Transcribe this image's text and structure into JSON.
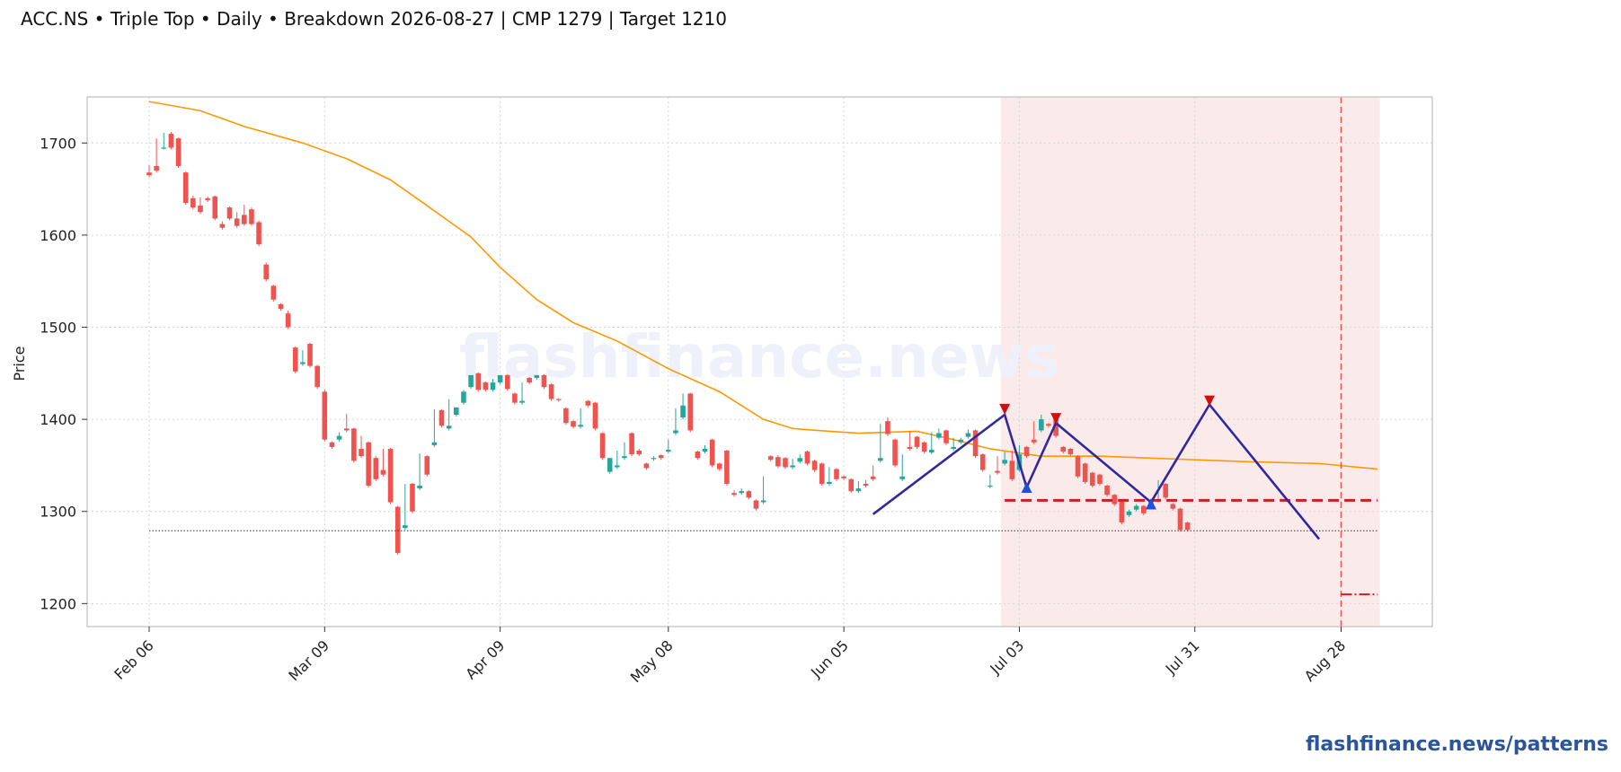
{
  "title": {
    "ticker": "ACC.NS",
    "pattern": "Triple Top",
    "timeframe": "Daily",
    "breakdown": "Breakdown 2026-08-27",
    "cmp": "CMP 1279",
    "target": "Target 1210"
  },
  "watermark": "flashfinance.news",
  "footer": "flashfinance.news/patterns",
  "colors": {
    "up": "#26a69a",
    "down": "#ef5350",
    "sma": "#ff9800",
    "pattern_line": "#31289f",
    "peak_marker": "#cc1111",
    "trough_marker": "#1f4fdd",
    "neckline": "#cc1f1f",
    "zone": "#f9e5e5",
    "grid": "#d6d6d6",
    "footer": "#2c5599"
  },
  "chart_data": {
    "type": "candlestick",
    "ylabel": "Price",
    "ylim": [
      1175,
      1750
    ],
    "yticks": [
      1200,
      1300,
      1400,
      1500,
      1600,
      1700
    ],
    "xticks": [
      "Feb 06",
      "Mar 09",
      "Apr 09",
      "May 08",
      "Jun 05",
      "Jul 03",
      "Jul 31",
      "Aug 28"
    ],
    "grid": true,
    "candles_ohc": [
      [
        1668,
        1676,
        1665
      ],
      [
        1675,
        1705,
        1670
      ],
      [
        1695,
        1711,
        1695
      ],
      [
        1710,
        1712,
        1695
      ],
      [
        1705,
        1706,
        1675
      ],
      [
        1668,
        1669,
        1635
      ],
      [
        1640,
        1643,
        1630
      ],
      [
        1632,
        1641,
        1625
      ],
      [
        1640,
        1642,
        1638
      ],
      [
        1642,
        1643,
        1618
      ],
      [
        1612,
        1615,
        1608
      ],
      [
        1630,
        1631,
        1618
      ],
      [
        1618,
        1625,
        1610
      ],
      [
        1622,
        1633,
        1612
      ],
      [
        1628,
        1630,
        1612
      ],
      [
        1614,
        1616,
        1590
      ],
      [
        1568,
        1570,
        1552
      ],
      [
        1545,
        1546,
        1530
      ],
      [
        1525,
        1526,
        1520
      ],
      [
        1515,
        1518,
        1500
      ],
      [
        1478,
        1479,
        1452
      ],
      [
        1460,
        1475,
        1462
      ],
      [
        1482,
        1483,
        1458
      ],
      [
        1458,
        1459,
        1435
      ],
      [
        1430,
        1432,
        1378
      ],
      [
        1375,
        1376,
        1370
      ],
      [
        1378,
        1386,
        1382
      ],
      [
        1390,
        1406,
        1388
      ],
      [
        1390,
        1391,
        1355
      ],
      [
        1368,
        1382,
        1360
      ],
      [
        1375,
        1376,
        1328
      ],
      [
        1358,
        1360,
        1335
      ],
      [
        1345,
        1368,
        1340
      ],
      [
        1368,
        1369,
        1310
      ],
      [
        1305,
        1306,
        1255
      ],
      [
        1282,
        1330,
        1285
      ],
      [
        1330,
        1331,
        1300
      ],
      [
        1325,
        1363,
        1328
      ],
      [
        1360,
        1361,
        1340
      ],
      [
        1372,
        1411,
        1375
      ],
      [
        1410,
        1411,
        1393
      ],
      [
        1390,
        1422,
        1393
      ],
      [
        1405,
        1412,
        1413
      ],
      [
        1418,
        1432,
        1430
      ],
      [
        1435,
        1441,
        1448
      ],
      [
        1450,
        1451,
        1432
      ],
      [
        1440,
        1441,
        1432
      ],
      [
        1432,
        1444,
        1440
      ],
      [
        1440,
        1448,
        1448
      ],
      [
        1448,
        1449,
        1433
      ],
      [
        1428,
        1429,
        1418
      ],
      [
        1418,
        1440,
        1420
      ],
      [
        1445,
        1446,
        1440
      ],
      [
        1445,
        1447,
        1448
      ],
      [
        1448,
        1449,
        1435
      ],
      [
        1438,
        1439,
        1422
      ],
      [
        1422,
        1423,
        1421
      ],
      [
        1412,
        1413,
        1396
      ],
      [
        1398,
        1399,
        1392
      ],
      [
        1392,
        1412,
        1394
      ],
      [
        1420,
        1421,
        1415
      ],
      [
        1418,
        1419,
        1390
      ],
      [
        1385,
        1386,
        1358
      ],
      [
        1343,
        1345,
        1358
      ],
      [
        1348,
        1366,
        1350
      ],
      [
        1358,
        1375,
        1360
      ],
      [
        1385,
        1386,
        1362
      ],
      [
        1366,
        1368,
        1362
      ],
      [
        1352,
        1353,
        1347
      ],
      [
        1357,
        1360,
        1358
      ],
      [
        1361,
        1362,
        1358
      ],
      [
        1365,
        1378,
        1367
      ],
      [
        1385,
        1412,
        1388
      ],
      [
        1402,
        1428,
        1415
      ],
      [
        1428,
        1429,
        1388
      ],
      [
        1365,
        1366,
        1358
      ],
      [
        1365,
        1372,
        1368
      ],
      [
        1378,
        1379,
        1350
      ],
      [
        1352,
        1353,
        1346
      ],
      [
        1366,
        1367,
        1330
      ],
      [
        1320,
        1323,
        1318
      ],
      [
        1320,
        1325,
        1322
      ],
      [
        1322,
        1323,
        1315
      ],
      [
        1312,
        1313,
        1303
      ],
      [
        1310,
        1338,
        1312
      ],
      [
        1360,
        1361,
        1356
      ],
      [
        1359,
        1361,
        1349
      ],
      [
        1358,
        1359,
        1348
      ],
      [
        1348,
        1357,
        1350
      ],
      [
        1354,
        1362,
        1358
      ],
      [
        1365,
        1366,
        1352
      ],
      [
        1355,
        1356,
        1345
      ],
      [
        1352,
        1353,
        1330
      ],
      [
        1330,
        1348,
        1332
      ],
      [
        1346,
        1347,
        1335
      ],
      [
        1338,
        1339,
        1336
      ],
      [
        1335,
        1336,
        1322
      ],
      [
        1322,
        1333,
        1325
      ],
      [
        1330,
        1334,
        1328
      ],
      [
        1338,
        1350,
        1335
      ],
      [
        1355,
        1395,
        1358
      ],
      [
        1398,
        1402,
        1384
      ],
      [
        1378,
        1379,
        1350
      ],
      [
        1335,
        1362,
        1338
      ],
      [
        1370,
        1387,
        1368
      ],
      [
        1381,
        1382,
        1370
      ],
      [
        1375,
        1376,
        1365
      ],
      [
        1364,
        1386,
        1367
      ],
      [
        1380,
        1390,
        1385
      ],
      [
        1388,
        1389,
        1374
      ],
      [
        1368,
        1380,
        1370
      ],
      [
        1375,
        1380,
        1378
      ],
      [
        1381,
        1389,
        1385
      ],
      [
        1388,
        1389,
        1360
      ],
      [
        1362,
        1363,
        1345
      ],
      [
        1327,
        1340,
        1328
      ],
      [
        1344,
        1360,
        1342
      ],
      [
        1352,
        1365,
        1356
      ],
      [
        1355,
        1366,
        1335
      ],
      [
        1345,
        1372,
        1362
      ],
      [
        1370,
        1371,
        1360
      ],
      [
        1378,
        1398,
        1375
      ],
      [
        1388,
        1405,
        1400
      ],
      [
        1395,
        1396,
        1393
      ],
      [
        1402,
        1403,
        1382
      ],
      [
        1370,
        1371,
        1365
      ],
      [
        1368,
        1369,
        1362
      ],
      [
        1360,
        1361,
        1338
      ],
      [
        1352,
        1353,
        1332
      ],
      [
        1342,
        1343,
        1328
      ],
      [
        1340,
        1341,
        1330
      ],
      [
        1328,
        1329,
        1318
      ],
      [
        1318,
        1319,
        1308
      ],
      [
        1312,
        1313,
        1288
      ],
      [
        1296,
        1302,
        1300
      ],
      [
        1302,
        1308,
        1306
      ],
      [
        1306,
        1307,
        1298
      ],
      [
        1306,
        1310,
        1312
      ],
      [
        1312,
        1334,
        1313
      ],
      [
        1330,
        1331,
        1315
      ],
      [
        1308,
        1309,
        1303
      ],
      [
        1303,
        1304,
        1280
      ],
      [
        1288,
        1289,
        1280
      ]
    ],
    "sma": [
      [
        0,
        1745
      ],
      [
        7,
        1735
      ],
      [
        13,
        1718
      ],
      [
        21,
        1700
      ],
      [
        27,
        1683
      ],
      [
        33,
        1660
      ],
      [
        38,
        1632
      ],
      [
        44,
        1598
      ],
      [
        48,
        1565
      ],
      [
        53,
        1530
      ],
      [
        58,
        1505
      ],
      [
        64,
        1485
      ],
      [
        71,
        1455
      ],
      [
        78,
        1430
      ],
      [
        84,
        1400
      ],
      [
        88,
        1390
      ],
      [
        93,
        1387
      ],
      [
        97,
        1385
      ],
      [
        105,
        1387
      ],
      [
        110,
        1378
      ],
      [
        115,
        1368
      ],
      [
        122,
        1360
      ],
      [
        130,
        1360
      ],
      [
        140,
        1357
      ],
      [
        150,
        1354
      ],
      [
        160,
        1352
      ],
      [
        168,
        1346
      ]
    ],
    "pattern_polyline": [
      [
        99,
        1297
      ],
      [
        117,
        1405
      ],
      [
        120,
        1326
      ],
      [
        124,
        1396
      ],
      [
        137,
        1310
      ],
      [
        145,
        1416
      ],
      [
        160,
        1270
      ]
    ],
    "peaks": [
      [
        117,
        1410
      ],
      [
        124,
        1400
      ],
      [
        145,
        1419
      ]
    ],
    "troughs": [
      [
        120,
        1327
      ],
      [
        137,
        1309
      ]
    ],
    "neckline": {
      "price": 1312,
      "from": 117,
      "to": 168
    },
    "cmp_line": {
      "price": 1279,
      "from": 0,
      "to": 168
    },
    "target_line": {
      "price": 1210,
      "from": 163,
      "to": 168
    },
    "breakdown_index": 163,
    "zone": {
      "from": 116.5,
      "to": 168.3
    },
    "xtick_index": [
      0,
      24,
      48,
      71,
      95,
      119,
      143,
      163
    ]
  }
}
